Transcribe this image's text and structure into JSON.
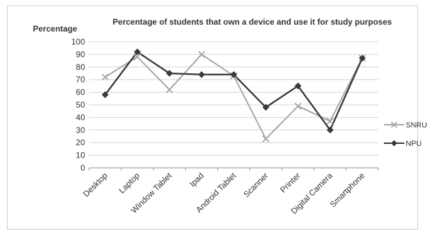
{
  "chart_data": {
    "type": "line",
    "title": "Percentage of students that own a device and use it for study purposes",
    "ylabel": "Percentage",
    "xlabel": "",
    "ylim": [
      0,
      100
    ],
    "yticks": [
      0,
      10,
      20,
      30,
      40,
      50,
      60,
      70,
      80,
      90,
      100
    ],
    "grid": true,
    "legend_position": "right",
    "categories": [
      "Desktop",
      "Laptop",
      "Window Tablet",
      "Ipad",
      "Android Tablet",
      "Scanner",
      "Printer",
      "Digital Camera",
      "Smartphone"
    ],
    "series": [
      {
        "name": "SNRU",
        "color": "#a6a6a6",
        "marker": "x",
        "values": [
          72,
          88,
          62,
          90,
          73,
          23,
          49,
          37,
          87
        ]
      },
      {
        "name": "NPU",
        "color": "#3a3a3a",
        "marker": "diamond",
        "values": [
          58,
          92,
          75,
          74,
          74,
          48,
          65,
          30,
          87
        ]
      }
    ]
  }
}
